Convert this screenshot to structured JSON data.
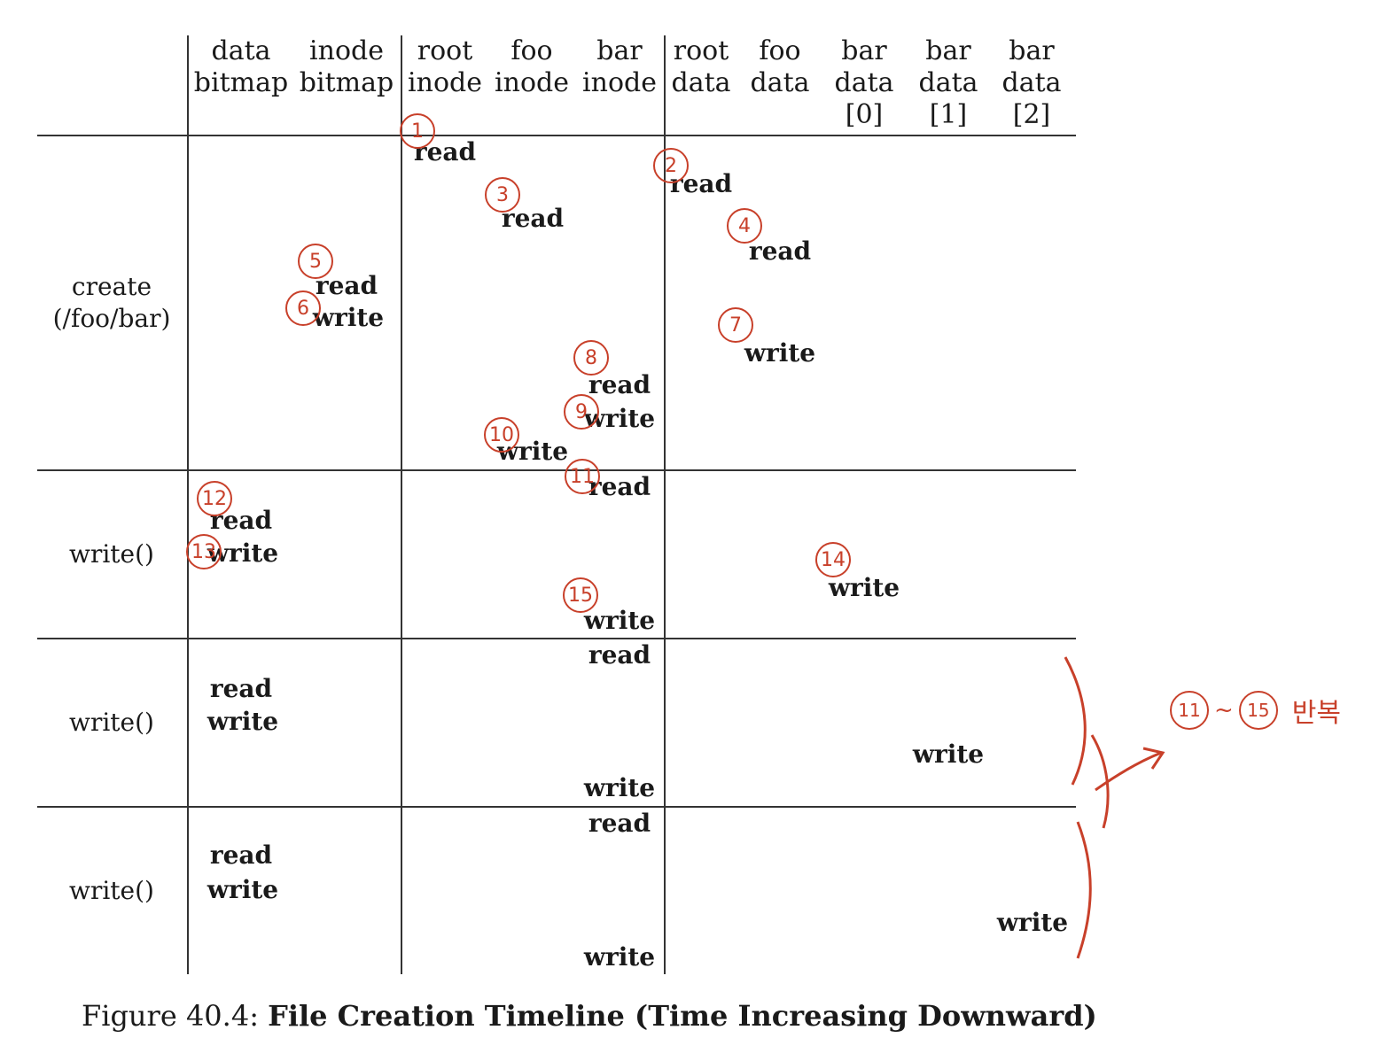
{
  "columns": [
    {
      "l1": "data",
      "l2": "bitmap",
      "l3": ""
    },
    {
      "l1": "inode",
      "l2": "bitmap",
      "l3": ""
    },
    {
      "l1": "root",
      "l2": "inode",
      "l3": ""
    },
    {
      "l1": "foo",
      "l2": "inode",
      "l3": ""
    },
    {
      "l1": "bar",
      "l2": "inode",
      "l3": ""
    },
    {
      "l1": "root",
      "l2": "data",
      "l3": ""
    },
    {
      "l1": "foo",
      "l2": "data",
      "l3": ""
    },
    {
      "l1": "bar",
      "l2": "data",
      "l3": "[0]"
    },
    {
      "l1": "bar",
      "l2": "data",
      "l3": "[1]"
    },
    {
      "l1": "bar",
      "l2": "data",
      "l3": "[2]"
    }
  ],
  "rows": [
    {
      "label1": "create",
      "label2": "(/foo/bar)"
    },
    {
      "label1": "write()",
      "label2": ""
    },
    {
      "label1": "write()",
      "label2": ""
    },
    {
      "label1": "write()",
      "label2": ""
    }
  ],
  "ops": [
    {
      "text": "read",
      "col": 2
    },
    {
      "text": "read",
      "col": 5
    },
    {
      "text": "read",
      "col": 3
    },
    {
      "text": "read",
      "col": 6
    },
    {
      "text": "read",
      "col": 1
    },
    {
      "text": "write",
      "col": 1
    },
    {
      "text": "write",
      "col": 6
    },
    {
      "text": "read",
      "col": 4
    },
    {
      "text": "write",
      "col": 4
    },
    {
      "text": "write",
      "col": 3
    },
    {
      "text": "read",
      "col": 4
    },
    {
      "text": "read",
      "col": 0
    },
    {
      "text": "write",
      "col": 0
    },
    {
      "text": "write",
      "col": 7
    },
    {
      "text": "write",
      "col": 4
    },
    {
      "text": "read",
      "col": 4
    },
    {
      "text": "read",
      "col": 0
    },
    {
      "text": "write",
      "col": 0
    },
    {
      "text": "write",
      "col": 8
    },
    {
      "text": "write",
      "col": 4
    },
    {
      "text": "read",
      "col": 4
    },
    {
      "text": "read",
      "col": 0
    },
    {
      "text": "write",
      "col": 0
    },
    {
      "text": "write",
      "col": 9
    },
    {
      "text": "write",
      "col": 4
    }
  ],
  "annotations": {
    "marks": [
      "1",
      "2",
      "3",
      "4",
      "5",
      "6",
      "7",
      "8",
      "9",
      "10",
      "11",
      "12",
      "13",
      "14",
      "15"
    ],
    "note_from": "11",
    "note_tilde": "~",
    "note_to": "15",
    "note_text": "반복",
    "color": "#c8402a"
  },
  "caption": {
    "prefix": "Figure 40.4: ",
    "title": "File Creation Timeline (Time Increasing Downward)"
  }
}
